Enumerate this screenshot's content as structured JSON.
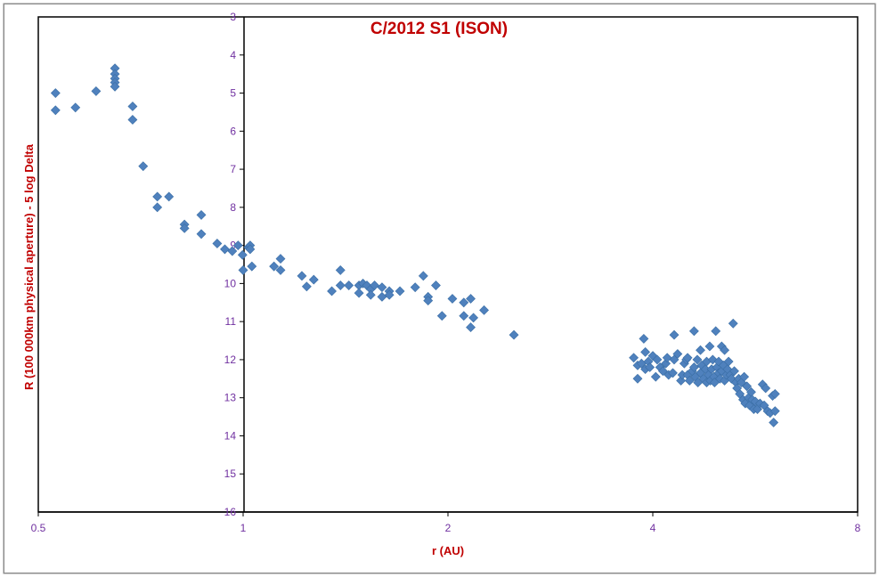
{
  "chart_data": {
    "type": "scatter",
    "title": "C/2012 S1 (ISON)",
    "xlabel": "r (AU)",
    "ylabel": "R (100 000km physical aperture) - 5 log Delta",
    "x_scale": "log2",
    "xlim": [
      0.5,
      8
    ],
    "ylim": [
      16,
      3
    ],
    "y_inverted": true,
    "x_ticks": [
      "0.5",
      "1",
      "2",
      "4",
      "8"
    ],
    "x_tick_values": [
      0.5,
      1,
      2,
      4,
      8
    ],
    "y_ticks": [
      "3",
      "4",
      "5",
      "6",
      "7",
      "8",
      "9",
      "10",
      "11",
      "12",
      "13",
      "14",
      "15",
      "16"
    ],
    "y_tick_values": [
      3,
      4,
      5,
      6,
      7,
      8,
      9,
      10,
      11,
      12,
      13,
      14,
      15,
      16
    ],
    "grid": false,
    "legend": "none",
    "marker": "diamond",
    "marker_color": "#4f81bd",
    "series": [
      {
        "points": [
          [
            0.53,
            5.0
          ],
          [
            0.53,
            5.45
          ],
          [
            0.567,
            5.38
          ],
          [
            0.608,
            4.95
          ],
          [
            0.648,
            4.35
          ],
          [
            0.648,
            4.5
          ],
          [
            0.648,
            4.62
          ],
          [
            0.648,
            4.72
          ],
          [
            0.648,
            4.83
          ],
          [
            0.688,
            5.35
          ],
          [
            0.688,
            5.7
          ],
          [
            0.713,
            6.92
          ],
          [
            0.748,
            7.72
          ],
          [
            0.748,
            8.0
          ],
          [
            0.778,
            7.72
          ],
          [
            0.82,
            8.45
          ],
          [
            0.82,
            8.55
          ],
          [
            0.868,
            8.2
          ],
          [
            0.868,
            8.7
          ],
          [
            0.916,
            8.95
          ],
          [
            0.94,
            9.1
          ],
          [
            0.964,
            9.15
          ],
          [
            0.983,
            9.0
          ],
          [
            0.998,
            9.25
          ],
          [
            1.0,
            9.65
          ],
          [
            1.018,
            9.05
          ],
          [
            1.024,
            9.0
          ],
          [
            1.024,
            9.1
          ],
          [
            1.03,
            9.55
          ],
          [
            1.11,
            9.55
          ],
          [
            1.135,
            9.35
          ],
          [
            1.135,
            9.65
          ],
          [
            1.22,
            9.8
          ],
          [
            1.24,
            10.08
          ],
          [
            1.27,
            9.9
          ],
          [
            1.35,
            10.2
          ],
          [
            1.39,
            10.05
          ],
          [
            1.39,
            9.65
          ],
          [
            1.43,
            10.05
          ],
          [
            1.48,
            10.05
          ],
          [
            1.48,
            10.25
          ],
          [
            1.5,
            10.0
          ],
          [
            1.52,
            10.05
          ],
          [
            1.54,
            10.15
          ],
          [
            1.54,
            10.3
          ],
          [
            1.56,
            10.05
          ],
          [
            1.6,
            10.1
          ],
          [
            1.6,
            10.35
          ],
          [
            1.64,
            10.2
          ],
          [
            1.64,
            10.3
          ],
          [
            1.7,
            10.2
          ],
          [
            1.79,
            10.1
          ],
          [
            1.84,
            9.8
          ],
          [
            1.87,
            10.35
          ],
          [
            1.87,
            10.45
          ],
          [
            1.92,
            10.05
          ],
          [
            1.96,
            10.85
          ],
          [
            2.03,
            10.4
          ],
          [
            2.11,
            10.85
          ],
          [
            2.11,
            10.5
          ],
          [
            2.16,
            10.4
          ],
          [
            2.16,
            11.15
          ],
          [
            2.18,
            10.9
          ],
          [
            2.26,
            10.7
          ],
          [
            2.5,
            11.35
          ],
          [
            3.75,
            11.95
          ],
          [
            3.8,
            12.15
          ],
          [
            3.8,
            12.5
          ],
          [
            3.85,
            12.1
          ],
          [
            3.88,
            11.45
          ],
          [
            3.9,
            11.8
          ],
          [
            3.9,
            12.25
          ],
          [
            3.94,
            12.05
          ],
          [
            3.96,
            12.2
          ],
          [
            4.0,
            11.9
          ],
          [
            4.04,
            12.45
          ],
          [
            4.06,
            12.0
          ],
          [
            4.1,
            12.2
          ],
          [
            4.14,
            12.3
          ],
          [
            4.18,
            12.1
          ],
          [
            4.2,
            11.95
          ],
          [
            4.22,
            12.4
          ],
          [
            4.28,
            12.35
          ],
          [
            4.3,
            12.0
          ],
          [
            4.3,
            11.35
          ],
          [
            4.35,
            11.85
          ],
          [
            4.4,
            12.55
          ],
          [
            4.42,
            12.4
          ],
          [
            4.45,
            12.1
          ],
          [
            4.48,
            12.0
          ],
          [
            4.5,
            11.95
          ],
          [
            4.5,
            12.4
          ],
          [
            4.53,
            12.55
          ],
          [
            4.57,
            12.3
          ],
          [
            4.6,
            11.25
          ],
          [
            4.6,
            12.2
          ],
          [
            4.62,
            12.45
          ],
          [
            4.65,
            12.0
          ],
          [
            4.66,
            12.6
          ],
          [
            4.7,
            12.35
          ],
          [
            4.7,
            11.75
          ],
          [
            4.72,
            12.15
          ],
          [
            4.75,
            12.5
          ],
          [
            4.78,
            12.25
          ],
          [
            4.8,
            12.6
          ],
          [
            4.8,
            12.05
          ],
          [
            4.83,
            12.4
          ],
          [
            4.85,
            11.65
          ],
          [
            4.86,
            12.55
          ],
          [
            4.88,
            12.25
          ],
          [
            4.9,
            12.0
          ],
          [
            4.92,
            12.45
          ],
          [
            4.93,
            12.6
          ],
          [
            4.95,
            11.25
          ],
          [
            4.97,
            12.2
          ],
          [
            5.0,
            12.35
          ],
          [
            5.0,
            12.05
          ],
          [
            5.02,
            12.5
          ],
          [
            5.05,
            11.65
          ],
          [
            5.05,
            12.3
          ],
          [
            5.08,
            12.15
          ],
          [
            5.1,
            12.55
          ],
          [
            5.1,
            11.75
          ],
          [
            5.13,
            12.4
          ],
          [
            5.15,
            12.25
          ],
          [
            5.17,
            12.05
          ],
          [
            5.2,
            12.4
          ],
          [
            5.22,
            12.5
          ],
          [
            5.25,
            11.05
          ],
          [
            5.27,
            12.3
          ],
          [
            5.3,
            12.6
          ],
          [
            5.32,
            12.75
          ],
          [
            5.35,
            12.5
          ],
          [
            5.37,
            12.9
          ],
          [
            5.4,
            12.6
          ],
          [
            5.43,
            13.05
          ],
          [
            5.45,
            12.45
          ],
          [
            5.47,
            13.15
          ],
          [
            5.5,
            12.7
          ],
          [
            5.53,
            13.0
          ],
          [
            5.55,
            13.2
          ],
          [
            5.58,
            12.85
          ],
          [
            5.6,
            13.05
          ],
          [
            5.63,
            13.3
          ],
          [
            5.66,
            13.1
          ],
          [
            5.7,
            13.3
          ],
          [
            5.75,
            13.15
          ],
          [
            5.8,
            12.65
          ],
          [
            5.83,
            13.2
          ],
          [
            5.86,
            12.75
          ],
          [
            5.9,
            13.35
          ],
          [
            5.95,
            13.4
          ],
          [
            6.0,
            12.95
          ],
          [
            6.02,
            13.65
          ],
          [
            6.05,
            12.9
          ],
          [
            6.05,
            13.35
          ]
        ]
      }
    ]
  }
}
